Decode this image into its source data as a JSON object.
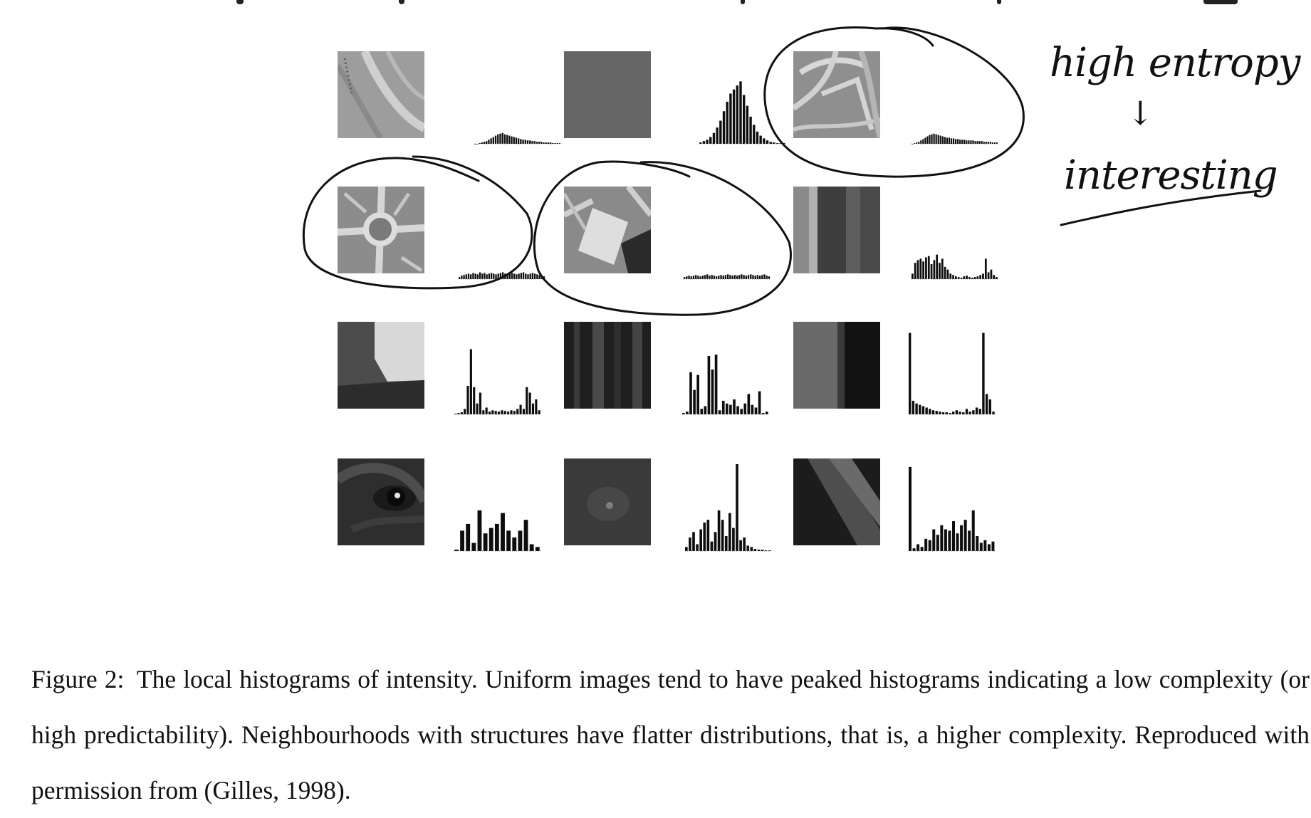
{
  "figure": {
    "caption_label": "Figure 2:",
    "caption_text": "The local histograms of intensity. Uniform images tend to have peaked histograms indicating a low complexity (or high predictability). Neighbourhoods with structures have flatter distributions, that is, a higher complexity. Reproduced with permission from (Gilles, 1998)."
  },
  "annotation": {
    "line1": "high entropy",
    "arrow": "↓",
    "line2": "interesting"
  },
  "chart_data": {
    "type": "bar",
    "panels": [
      {
        "row": 1,
        "col": 1,
        "patch": "curved-road-texture",
        "circled": false,
        "values": [
          0,
          0,
          1,
          2,
          3,
          4,
          6,
          8,
          10,
          12,
          14,
          15,
          16,
          14,
          13,
          12,
          11,
          10,
          9,
          8,
          7,
          6,
          6,
          5,
          5,
          4,
          4,
          3,
          3,
          3,
          2,
          2,
          2,
          2,
          1,
          1,
          1,
          1
        ]
      },
      {
        "row": 1,
        "col": 2,
        "patch": "uniform-gray",
        "circled": false,
        "values": [
          2,
          4,
          6,
          10,
          16,
          24,
          34,
          48,
          62,
          74,
          80,
          86,
          92,
          72,
          56,
          40,
          28,
          18,
          12,
          8,
          5,
          3,
          2,
          1,
          1,
          1
        ]
      },
      {
        "row": 1,
        "col": 3,
        "patch": "road-network-texture",
        "circled": true,
        "values": [
          0,
          1,
          2,
          3,
          5,
          7,
          9,
          11,
          13,
          14,
          15,
          14,
          13,
          12,
          11,
          10,
          9,
          9,
          8,
          8,
          7,
          7,
          6,
          6,
          6,
          5,
          5,
          5,
          5,
          4,
          4,
          4,
          4,
          3,
          3,
          3,
          3,
          2,
          2,
          2
        ]
      },
      {
        "row": 2,
        "col": 1,
        "patch": "roundabout-texture",
        "circled": true,
        "values": [
          3,
          5,
          6,
          7,
          8,
          7,
          9,
          8,
          7,
          10,
          8,
          9,
          7,
          8,
          9,
          8,
          7,
          8,
          9,
          10,
          8,
          7,
          8,
          9,
          8,
          7,
          8,
          9,
          10,
          8,
          7,
          8,
          9,
          8,
          7,
          6,
          5,
          4
        ]
      },
      {
        "row": 2,
        "col": 2,
        "patch": "building-block-texture",
        "circled": true,
        "values": [
          3,
          4,
          5,
          4,
          5,
          6,
          5,
          4,
          5,
          6,
          7,
          5,
          6,
          5,
          4,
          5,
          6,
          5,
          6,
          7,
          6,
          5,
          6,
          5,
          6,
          7,
          6,
          5,
          6,
          7,
          6,
          5,
          6,
          5,
          6,
          7,
          5,
          4
        ]
      },
      {
        "row": 2,
        "col": 3,
        "patch": "vertical-stripe-texture",
        "circled": false,
        "values": [
          8,
          24,
          28,
          30,
          26,
          32,
          34,
          22,
          28,
          36,
          24,
          30,
          18,
          14,
          8,
          6,
          4,
          3,
          2,
          4,
          5,
          3,
          2,
          3,
          4,
          6,
          8,
          30,
          10,
          14,
          6,
          3
        ]
      },
      {
        "row": 3,
        "col": 1,
        "patch": "bright-corner-edge",
        "circled": false,
        "values": [
          1,
          2,
          3,
          8,
          42,
          96,
          40,
          16,
          32,
          6,
          10,
          4,
          6,
          5,
          4,
          6,
          5,
          4,
          6,
          5,
          8,
          14,
          8,
          40,
          32,
          16,
          22,
          6
        ]
      },
      {
        "row": 3,
        "col": 2,
        "patch": "dark-vertical-bands",
        "circled": false,
        "values": [
          2,
          4,
          62,
          36,
          58,
          8,
          12,
          86,
          66,
          88,
          6,
          20,
          16,
          14,
          22,
          12,
          8,
          16,
          30,
          14,
          10,
          34,
          2,
          4
        ]
      },
      {
        "row": 3,
        "col": 3,
        "patch": "two-tone-edge",
        "circled": false,
        "values": [
          120,
          20,
          16,
          14,
          12,
          10,
          8,
          6,
          5,
          4,
          3,
          3,
          2,
          4,
          6,
          4,
          3,
          8,
          4,
          6,
          10,
          8,
          120,
          30,
          22,
          4
        ]
      },
      {
        "row": 4,
        "col": 1,
        "patch": "eye-close-up",
        "circled": false,
        "values": [
          2,
          30,
          40,
          12,
          60,
          26,
          34,
          40,
          56,
          30,
          20,
          30,
          46,
          10,
          6
        ]
      },
      {
        "row": 4,
        "col": 2,
        "patch": "dark-noisy-texture",
        "circled": false,
        "values": [
          6,
          20,
          28,
          10,
          32,
          42,
          46,
          14,
          28,
          60,
          46,
          22,
          56,
          34,
          128,
          16,
          20,
          8,
          6,
          3,
          2,
          2,
          1,
          1
        ]
      },
      {
        "row": 4,
        "col": 3,
        "patch": "diagonal-shadow-texture",
        "circled": false,
        "values": [
          124,
          4,
          10,
          6,
          18,
          16,
          32,
          24,
          38,
          32,
          30,
          44,
          26,
          38,
          46,
          30,
          60,
          22,
          12,
          16,
          10,
          14
        ]
      }
    ]
  }
}
